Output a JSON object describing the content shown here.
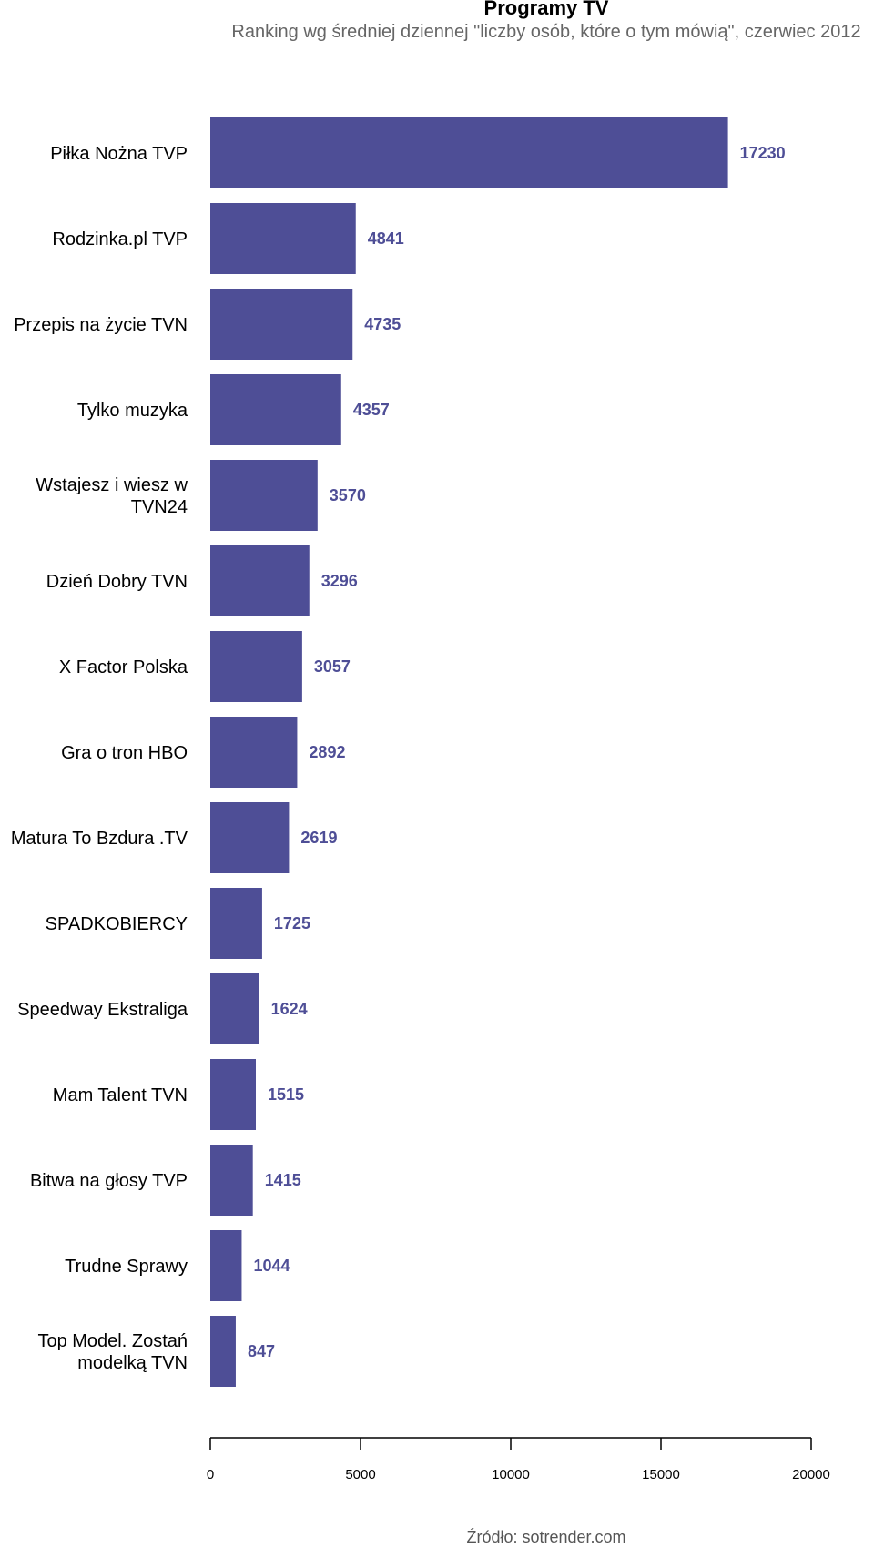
{
  "chart_data": {
    "type": "bar",
    "orientation": "horizontal",
    "title": "Programy TV",
    "subtitle": "Ranking wg średniej dziennej \"liczby osób, które o tym mówią\", czerwiec 2012",
    "categories": [
      [
        "Piłka Nożna TVP"
      ],
      [
        "Rodzinka.pl TVP"
      ],
      [
        "Przepis na życie TVN"
      ],
      [
        "Tylko muzyka"
      ],
      [
        "Wstajesz i wiesz w",
        "TVN24"
      ],
      [
        "Dzień Dobry TVN"
      ],
      [
        "X Factor Polska"
      ],
      [
        "Gra o tron HBO"
      ],
      [
        "Matura To Bzdura .TV"
      ],
      [
        "SPADKOBIERCY"
      ],
      [
        "Speedway Ekstraliga"
      ],
      [
        "Mam Talent TVN"
      ],
      [
        "Bitwa na głosy TVP"
      ],
      [
        "Trudne Sprawy"
      ],
      [
        "Top Model. Zostań",
        "modelką TVN"
      ]
    ],
    "values": [
      17230,
      4841,
      4735,
      4357,
      3570,
      3296,
      3057,
      2892,
      2619,
      1725,
      1624,
      1515,
      1415,
      1044,
      847
    ],
    "value_labels": [
      "17230",
      "4841",
      "4735",
      "4357",
      "3570",
      "3296",
      "3057",
      "2892",
      "2619",
      "1725",
      "1624",
      "1515",
      "1415",
      "1044",
      "847"
    ],
    "xlim": [
      0,
      20000
    ],
    "xticks": [
      0,
      5000,
      10000,
      15000,
      20000
    ],
    "xtick_labels": [
      "0",
      "5000",
      "10000",
      "15000",
      "20000"
    ],
    "xlabel": "",
    "ylabel": "",
    "grid": false,
    "legend": "none",
    "bar_color": "#4e4e96",
    "label_color": "#4e4e96"
  },
  "source": "Źródło: sotrender.com"
}
